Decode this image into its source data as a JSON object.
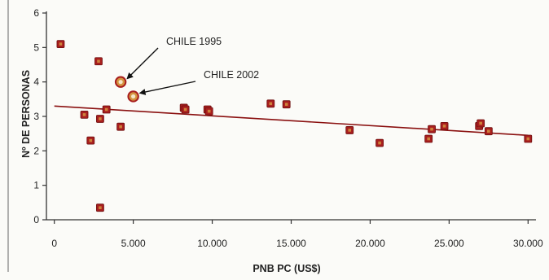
{
  "chart_data": {
    "type": "scatter",
    "xlabel": "PNB PC (US$)",
    "ylabel": "Nº DE PERSONAS",
    "xlim": [
      -500,
      30500
    ],
    "ylim": [
      0,
      6
    ],
    "x_ticks": [
      0,
      5000,
      10000,
      15000,
      20000,
      25000,
      30000
    ],
    "x_tick_labels": [
      "0",
      "5.000",
      "10.000",
      "15.000",
      "20.000",
      "25.000",
      "30.000"
    ],
    "y_ticks": [
      0,
      1,
      2,
      3,
      4,
      5,
      6
    ],
    "y_tick_labels": [
      "0",
      "1",
      "2",
      "3",
      "4",
      "5",
      "6"
    ],
    "grid": false,
    "colors": {
      "marker": "#a81e1e",
      "marker_fill": "#d4933f",
      "trend": "#8a1010",
      "axis": "#333333"
    },
    "points": [
      {
        "x": 400,
        "y": 5.1
      },
      {
        "x": 1900,
        "y": 3.05
      },
      {
        "x": 2300,
        "y": 2.3
      },
      {
        "x": 2800,
        "y": 4.6
      },
      {
        "x": 2900,
        "y": 2.93
      },
      {
        "x": 2900,
        "y": 0.35
      },
      {
        "x": 3300,
        "y": 3.2
      },
      {
        "x": 4200,
        "y": 2.7
      },
      {
        "x": 8200,
        "y": 3.25
      },
      {
        "x": 8300,
        "y": 3.2
      },
      {
        "x": 9700,
        "y": 3.2
      },
      {
        "x": 9800,
        "y": 3.15
      },
      {
        "x": 13700,
        "y": 3.37
      },
      {
        "x": 14700,
        "y": 3.35
      },
      {
        "x": 18700,
        "y": 2.6
      },
      {
        "x": 20600,
        "y": 2.23
      },
      {
        "x": 23700,
        "y": 2.35
      },
      {
        "x": 23900,
        "y": 2.63
      },
      {
        "x": 24700,
        "y": 2.72
      },
      {
        "x": 26900,
        "y": 2.72
      },
      {
        "x": 27000,
        "y": 2.8
      },
      {
        "x": 27500,
        "y": 2.57
      },
      {
        "x": 30000,
        "y": 2.35
      }
    ],
    "highlight_points": [
      {
        "label": "CHILE 1995",
        "x": 4200,
        "y": 4.0
      },
      {
        "label": "CHILE 2002",
        "x": 5000,
        "y": 3.58
      }
    ],
    "trendline": {
      "x": [
        0,
        30000
      ],
      "y": [
        3.3,
        2.45
      ]
    }
  }
}
